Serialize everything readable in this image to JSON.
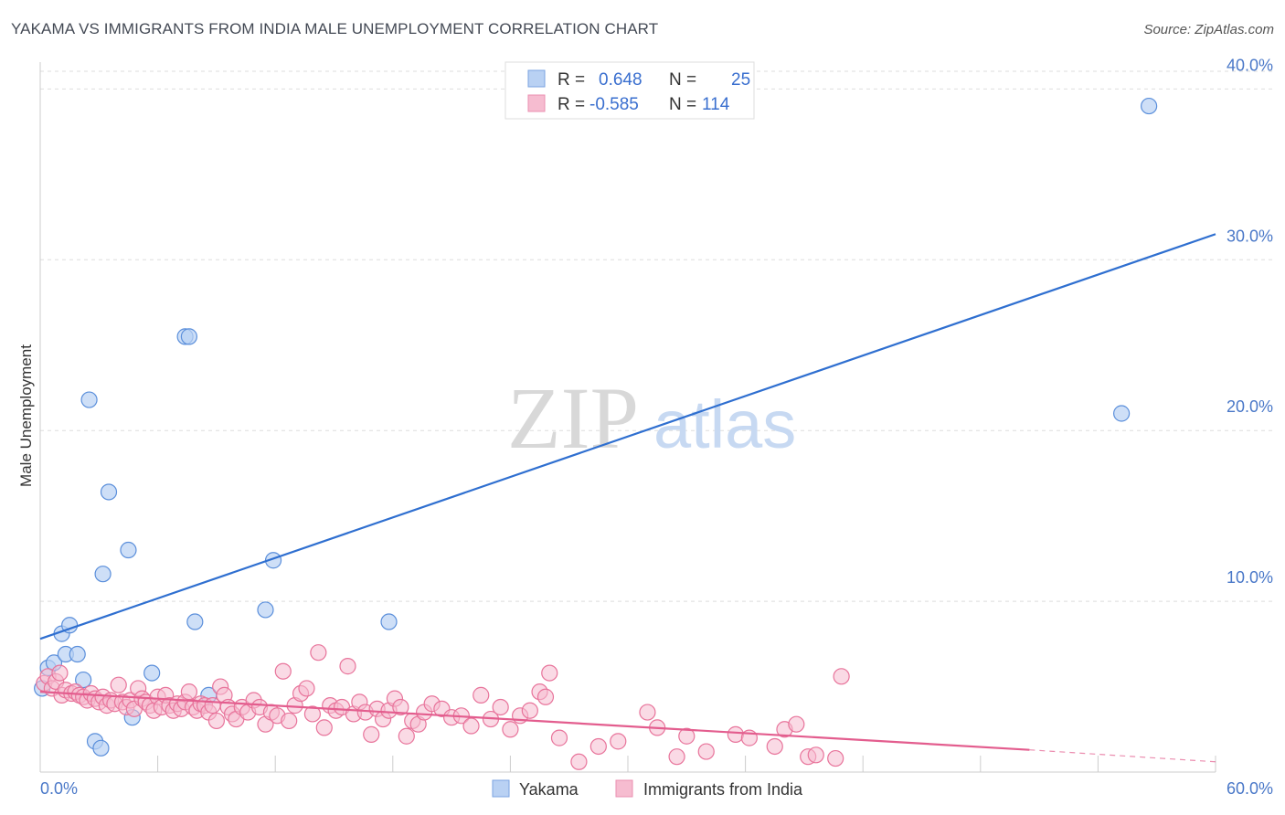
{
  "title": "YAKAMA VS IMMIGRANTS FROM INDIA MALE UNEMPLOYMENT CORRELATION CHART",
  "source": "Source: ZipAtlas.com",
  "watermark": {
    "zip": "ZIP",
    "atlas": "atlas"
  },
  "colors": {
    "blue": "#5b8fdb",
    "blue_fill": "#b9d1f3",
    "pink": "#e8749b",
    "pink_fill": "#f6bcd0",
    "blue_line": "#2f6fd0",
    "pink_line": "#e35d8e"
  },
  "legend": {
    "rows": [
      {
        "r_label": "R =",
        "r_value": "0.648",
        "n_label": "N =",
        "n_value": "25"
      },
      {
        "r_label": "R =",
        "r_value": "-0.585",
        "n_label": "N =",
        "n_value": "114"
      }
    ]
  },
  "chart_data": {
    "type": "scatter",
    "ylabel": "Male Unemployment",
    "xlabel": "",
    "xlim": [
      0,
      60
    ],
    "ylim": [
      0,
      42
    ],
    "y_ticks": [
      {
        "value": 10,
        "label": "10.0%"
      },
      {
        "value": 20,
        "label": "20.0%"
      },
      {
        "value": 30,
        "label": "30.0%"
      },
      {
        "value": 40,
        "label": "40.0%"
      }
    ],
    "x_ticks": [
      {
        "value": 0,
        "label": "0.0%"
      },
      {
        "value": 60,
        "label": "60.0%"
      }
    ],
    "grid": true,
    "legend_position": "top-center",
    "series": [
      {
        "name": "Yakama",
        "color": "#5b8fdb",
        "trend": {
          "x0": 0,
          "y0": 7.8,
          "x1": 60,
          "y1": 31.5
        },
        "points": [
          [
            0.1,
            4.9
          ],
          [
            0.4,
            6.1
          ],
          [
            0.7,
            6.4
          ],
          [
            1.1,
            8.1
          ],
          [
            1.3,
            6.9
          ],
          [
            1.5,
            8.6
          ],
          [
            1.9,
            6.9
          ],
          [
            2.2,
            5.4
          ],
          [
            2.5,
            21.8
          ],
          [
            2.8,
            1.8
          ],
          [
            3.1,
            1.4
          ],
          [
            3.2,
            11.6
          ],
          [
            3.5,
            16.4
          ],
          [
            4.5,
            13.0
          ],
          [
            4.7,
            3.2
          ],
          [
            5.7,
            5.8
          ],
          [
            7.4,
            25.5
          ],
          [
            7.6,
            25.5
          ],
          [
            7.9,
            8.8
          ],
          [
            8.6,
            4.5
          ],
          [
            11.5,
            9.5
          ],
          [
            11.9,
            12.4
          ],
          [
            17.8,
            8.8
          ],
          [
            55.2,
            21.0
          ],
          [
            56.6,
            39.0
          ]
        ]
      },
      {
        "name": "Immigrants from India",
        "color": "#e8749b",
        "trend": {
          "x0": 0,
          "y0": 4.7,
          "x1": 50.5,
          "y1": 1.3,
          "dash_x1": 60,
          "dash_y1": 0.6
        },
        "points": [
          [
            0.2,
            5.2
          ],
          [
            0.4,
            5.6
          ],
          [
            0.6,
            4.9
          ],
          [
            0.8,
            5.3
          ],
          [
            1.0,
            5.8
          ],
          [
            1.1,
            4.5
          ],
          [
            1.3,
            4.8
          ],
          [
            1.6,
            4.6
          ],
          [
            1.8,
            4.7
          ],
          [
            2.0,
            4.5
          ],
          [
            2.2,
            4.4
          ],
          [
            2.4,
            4.2
          ],
          [
            2.6,
            4.6
          ],
          [
            2.8,
            4.3
          ],
          [
            3.0,
            4.1
          ],
          [
            3.2,
            4.4
          ],
          [
            3.4,
            3.9
          ],
          [
            3.6,
            4.2
          ],
          [
            3.8,
            4.0
          ],
          [
            4.0,
            5.1
          ],
          [
            4.2,
            4.1
          ],
          [
            4.4,
            3.8
          ],
          [
            4.6,
            4.2
          ],
          [
            4.8,
            3.7
          ],
          [
            5.0,
            4.9
          ],
          [
            5.2,
            4.3
          ],
          [
            5.4,
            4.1
          ],
          [
            5.6,
            3.9
          ],
          [
            5.8,
            3.6
          ],
          [
            6.0,
            4.4
          ],
          [
            6.2,
            3.8
          ],
          [
            6.4,
            4.5
          ],
          [
            6.6,
            3.9
          ],
          [
            6.8,
            3.6
          ],
          [
            7.0,
            4.0
          ],
          [
            7.2,
            3.7
          ],
          [
            7.4,
            4.1
          ],
          [
            7.6,
            4.7
          ],
          [
            7.8,
            3.8
          ],
          [
            8.0,
            3.6
          ],
          [
            8.2,
            4.0
          ],
          [
            8.4,
            3.9
          ],
          [
            8.6,
            3.5
          ],
          [
            8.8,
            3.9
          ],
          [
            9.0,
            3.0
          ],
          [
            9.2,
            5.0
          ],
          [
            9.4,
            4.5
          ],
          [
            9.6,
            3.8
          ],
          [
            9.8,
            3.4
          ],
          [
            10.0,
            3.1
          ],
          [
            10.3,
            3.8
          ],
          [
            10.6,
            3.5
          ],
          [
            10.9,
            4.2
          ],
          [
            11.2,
            3.8
          ],
          [
            11.5,
            2.8
          ],
          [
            11.8,
            3.5
          ],
          [
            12.1,
            3.3
          ],
          [
            12.4,
            5.9
          ],
          [
            12.7,
            3.0
          ],
          [
            13.0,
            3.9
          ],
          [
            13.3,
            4.6
          ],
          [
            13.6,
            4.9
          ],
          [
            13.9,
            3.4
          ],
          [
            14.2,
            7.0
          ],
          [
            14.5,
            2.6
          ],
          [
            14.8,
            3.9
          ],
          [
            15.1,
            3.6
          ],
          [
            15.4,
            3.8
          ],
          [
            15.7,
            6.2
          ],
          [
            16.0,
            3.4
          ],
          [
            16.3,
            4.1
          ],
          [
            16.6,
            3.5
          ],
          [
            16.9,
            2.2
          ],
          [
            17.2,
            3.7
          ],
          [
            17.5,
            3.1
          ],
          [
            17.8,
            3.6
          ],
          [
            18.1,
            4.3
          ],
          [
            18.4,
            3.8
          ],
          [
            18.7,
            2.1
          ],
          [
            19.0,
            3.0
          ],
          [
            19.3,
            2.8
          ],
          [
            19.6,
            3.5
          ],
          [
            20.0,
            4.0
          ],
          [
            20.5,
            3.7
          ],
          [
            21.0,
            3.2
          ],
          [
            21.5,
            3.3
          ],
          [
            22.0,
            2.7
          ],
          [
            22.5,
            4.5
          ],
          [
            23.0,
            3.1
          ],
          [
            23.5,
            3.8
          ],
          [
            24.0,
            2.5
          ],
          [
            24.5,
            3.3
          ],
          [
            25.0,
            3.6
          ],
          [
            25.5,
            4.7
          ],
          [
            25.8,
            4.4
          ],
          [
            26.0,
            5.8
          ],
          [
            26.5,
            2.0
          ],
          [
            27.5,
            0.6
          ],
          [
            28.5,
            1.5
          ],
          [
            29.5,
            1.8
          ],
          [
            31.0,
            3.5
          ],
          [
            31.5,
            2.6
          ],
          [
            32.5,
            0.9
          ],
          [
            33.0,
            2.1
          ],
          [
            34.0,
            1.2
          ],
          [
            35.5,
            2.2
          ],
          [
            36.2,
            2.0
          ],
          [
            37.5,
            1.5
          ],
          [
            38.0,
            2.5
          ],
          [
            38.6,
            2.8
          ],
          [
            39.2,
            0.9
          ],
          [
            39.6,
            1.0
          ],
          [
            40.6,
            0.8
          ],
          [
            40.9,
            5.6
          ]
        ]
      }
    ]
  }
}
